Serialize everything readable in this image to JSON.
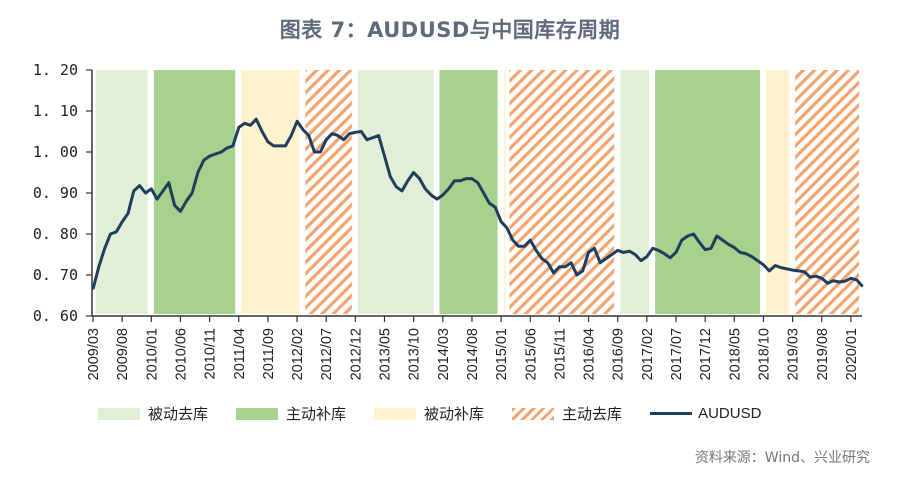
{
  "title": "图表 7：AUDUSD与中国库存周期",
  "source": "资料来源：Wind、兴业研究",
  "legend": {
    "passive_destock": "被动去库",
    "active_restock": "主动补库",
    "passive_restock": "被动补库",
    "active_destock": "主动去库",
    "audusd": "AUDUSD"
  },
  "colors": {
    "passive_destock": "#e2eed8",
    "active_restock": "#a9d18e",
    "passive_restock": "#fff2cc",
    "active_destock": "#f2a46f",
    "audusd": "#1f3e5e"
  },
  "chart_data": {
    "type": "line",
    "title": "图表 7：AUDUSD与中国库存周期",
    "xlabel": "",
    "ylabel": "",
    "ylim": [
      0.6,
      1.2
    ],
    "yticks": [
      "1.20",
      "1.10",
      "1.00",
      "0.90",
      "0.80",
      "0.70",
      "0.60"
    ],
    "xticks": [
      "2009/03",
      "2009/08",
      "2010/01",
      "2010/06",
      "2010/11",
      "2011/04",
      "2011/09",
      "2012/02",
      "2012/07",
      "2012/12",
      "2013/05",
      "2013/10",
      "2014/03",
      "2014/08",
      "2015/01",
      "2015/06",
      "2015/11",
      "2016/04",
      "2016/09",
      "2017/02",
      "2017/07",
      "2017/12",
      "2018/05",
      "2018/10",
      "2019/03",
      "2019/08",
      "2020/01"
    ],
    "grid": false,
    "legend_position": "bottom",
    "series": [
      {
        "name": "AUDUSD",
        "start": "2009/03",
        "frequency": "monthly",
        "values": [
          0.665,
          0.72,
          0.765,
          0.8,
          0.805,
          0.83,
          0.85,
          0.905,
          0.918,
          0.9,
          0.91,
          0.885,
          0.905,
          0.925,
          0.87,
          0.855,
          0.88,
          0.9,
          0.95,
          0.98,
          0.99,
          0.995,
          1.0,
          1.01,
          1.015,
          1.06,
          1.07,
          1.065,
          1.08,
          1.05,
          1.025,
          1.015,
          1.015,
          1.015,
          1.04,
          1.075,
          1.055,
          1.04,
          1.0,
          1.0,
          1.03,
          1.045,
          1.04,
          1.03,
          1.045,
          1.048,
          1.05,
          1.03,
          1.035,
          1.04,
          0.99,
          0.94,
          0.915,
          0.905,
          0.93,
          0.95,
          0.935,
          0.91,
          0.895,
          0.885,
          0.895,
          0.91,
          0.93,
          0.93,
          0.935,
          0.935,
          0.925,
          0.9,
          0.875,
          0.865,
          0.83,
          0.815,
          0.785,
          0.77,
          0.77,
          0.785,
          0.76,
          0.74,
          0.73,
          0.705,
          0.72,
          0.72,
          0.73,
          0.7,
          0.71,
          0.755,
          0.765,
          0.73,
          0.74,
          0.75,
          0.76,
          0.755,
          0.758,
          0.75,
          0.735,
          0.745,
          0.765,
          0.76,
          0.752,
          0.742,
          0.755,
          0.785,
          0.795,
          0.8,
          0.78,
          0.762,
          0.765,
          0.795,
          0.785,
          0.775,
          0.767,
          0.755,
          0.752,
          0.745,
          0.735,
          0.725,
          0.71,
          0.723,
          0.718,
          0.715,
          0.712,
          0.71,
          0.708,
          0.695,
          0.697,
          0.692,
          0.68,
          0.686,
          0.683,
          0.685,
          0.692,
          0.688,
          0.672
        ]
      }
    ],
    "regions": [
      {
        "type": "被动去库",
        "start": "2009/03",
        "end": "2009/12"
      },
      {
        "type": "主动补库",
        "start": "2010/01",
        "end": "2011/03"
      },
      {
        "type": "被动补库",
        "start": "2011/04",
        "end": "2012/02"
      },
      {
        "type": "主动去库",
        "start": "2012/03",
        "end": "2012/11"
      },
      {
        "type": "被动去库",
        "start": "2012/12",
        "end": "2014/01"
      },
      {
        "type": "主动补库",
        "start": "2014/02",
        "end": "2014/12"
      },
      {
        "type": "被动补库",
        "start": "2015/01",
        "end": "2015/01"
      },
      {
        "type": "主动去库",
        "start": "2015/02",
        "end": "2016/08"
      },
      {
        "type": "被动去库",
        "start": "2016/09",
        "end": "2017/02"
      },
      {
        "type": "主动补库",
        "start": "2017/03",
        "end": "2018/09"
      },
      {
        "type": "被动补库",
        "start": "2018/10",
        "end": "2019/02"
      },
      {
        "type": "主动去库",
        "start": "2019/03",
        "end": "2020/02"
      }
    ]
  }
}
